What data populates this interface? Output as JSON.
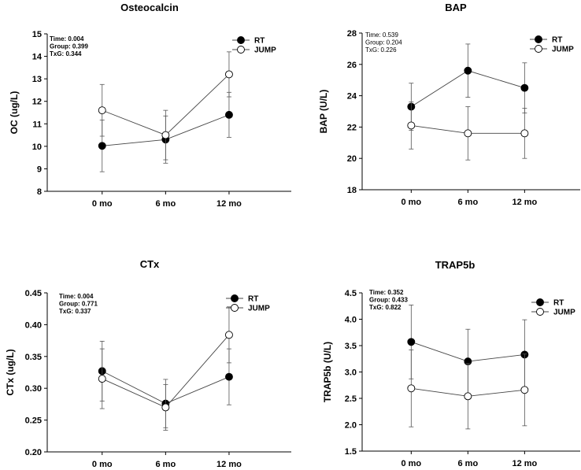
{
  "chart_data": [
    {
      "type": "line",
      "title": "Osteocalcin",
      "ylabel": "OC (ug/L)",
      "xlabel": "",
      "categories": [
        "0 mo",
        "6 mo",
        "12 mo"
      ],
      "ylim": [
        8,
        15
      ],
      "yticks": [
        "8",
        "9",
        "10",
        "11",
        "12",
        "13",
        "14",
        "15"
      ],
      "stats": [
        "Time:  0.004",
        "Group:  0.399",
        "TxG:  0.344"
      ],
      "stats_bold": true,
      "series": [
        {
          "name": "RT",
          "marker": "filled",
          "values": [
            10.02,
            10.3,
            11.4
          ],
          "err": [
            1.15,
            1.05,
            1.0
          ]
        },
        {
          "name": "JUMP",
          "marker": "open",
          "values": [
            11.6,
            10.5,
            13.2
          ],
          "err": [
            1.15,
            1.1,
            1.0
          ]
        }
      ]
    },
    {
      "type": "line",
      "title": "BAP",
      "ylabel": "BAP (U/L)",
      "xlabel": "",
      "categories": [
        "0 mo",
        "6 mo",
        "12 mo"
      ],
      "ylim": [
        18,
        28
      ],
      "yticks": [
        "18",
        "20",
        "22",
        "24",
        "26",
        "28"
      ],
      "stats": [
        "Time:  0.539",
        "Group:  0.204",
        "TxG:  0.226"
      ],
      "stats_bold": false,
      "series": [
        {
          "name": "RT",
          "marker": "filled",
          "values": [
            23.3,
            25.6,
            24.5
          ],
          "err": [
            1.5,
            1.7,
            1.6
          ]
        },
        {
          "name": "JUMP",
          "marker": "open",
          "values": [
            22.1,
            21.6,
            21.6
          ],
          "err": [
            1.5,
            1.7,
            1.6
          ]
        }
      ]
    },
    {
      "type": "line",
      "title": "CTx",
      "ylabel": "CTx (ug/L)",
      "xlabel": "",
      "categories": [
        "0 mo",
        "6 mo",
        "12 mo"
      ],
      "ylim": [
        0.2,
        0.45
      ],
      "yticks": [
        "0.20",
        "0.25",
        "0.30",
        "0.35",
        "0.40",
        "0.45"
      ],
      "stats": [
        "Time:  0.004",
        "Group:  0.771",
        "TxG:  0.337"
      ],
      "stats_bold": true,
      "series": [
        {
          "name": "RT",
          "marker": "filled",
          "values": [
            0.327,
            0.276,
            0.318
          ],
          "err": [
            0.047,
            0.038,
            0.044
          ]
        },
        {
          "name": "JUMP",
          "marker": "open",
          "values": [
            0.315,
            0.27,
            0.384
          ],
          "err": [
            0.047,
            0.036,
            0.044
          ]
        }
      ]
    },
    {
      "type": "line",
      "title": "TRAP5b",
      "ylabel": "TRAP5b (U/L)",
      "xlabel": "",
      "categories": [
        "0 mo",
        "6 mo",
        "12 mo"
      ],
      "ylim": [
        1.5,
        4.5
      ],
      "yticks": [
        "1.5",
        "2.0",
        "2.5",
        "3.0",
        "3.5",
        "4.0",
        "4.5"
      ],
      "stats": [
        "Time:  0.352",
        "Group:  0.433",
        "TxG:  0.822"
      ],
      "stats_bold": true,
      "series": [
        {
          "name": "RT",
          "marker": "filled",
          "values": [
            3.57,
            3.2,
            3.33
          ],
          "err": [
            0.7,
            0.61,
            0.66
          ]
        },
        {
          "name": "JUMP",
          "marker": "open",
          "values": [
            2.69,
            2.54,
            2.66
          ],
          "err": [
            0.73,
            0.62,
            0.68
          ]
        }
      ]
    }
  ]
}
